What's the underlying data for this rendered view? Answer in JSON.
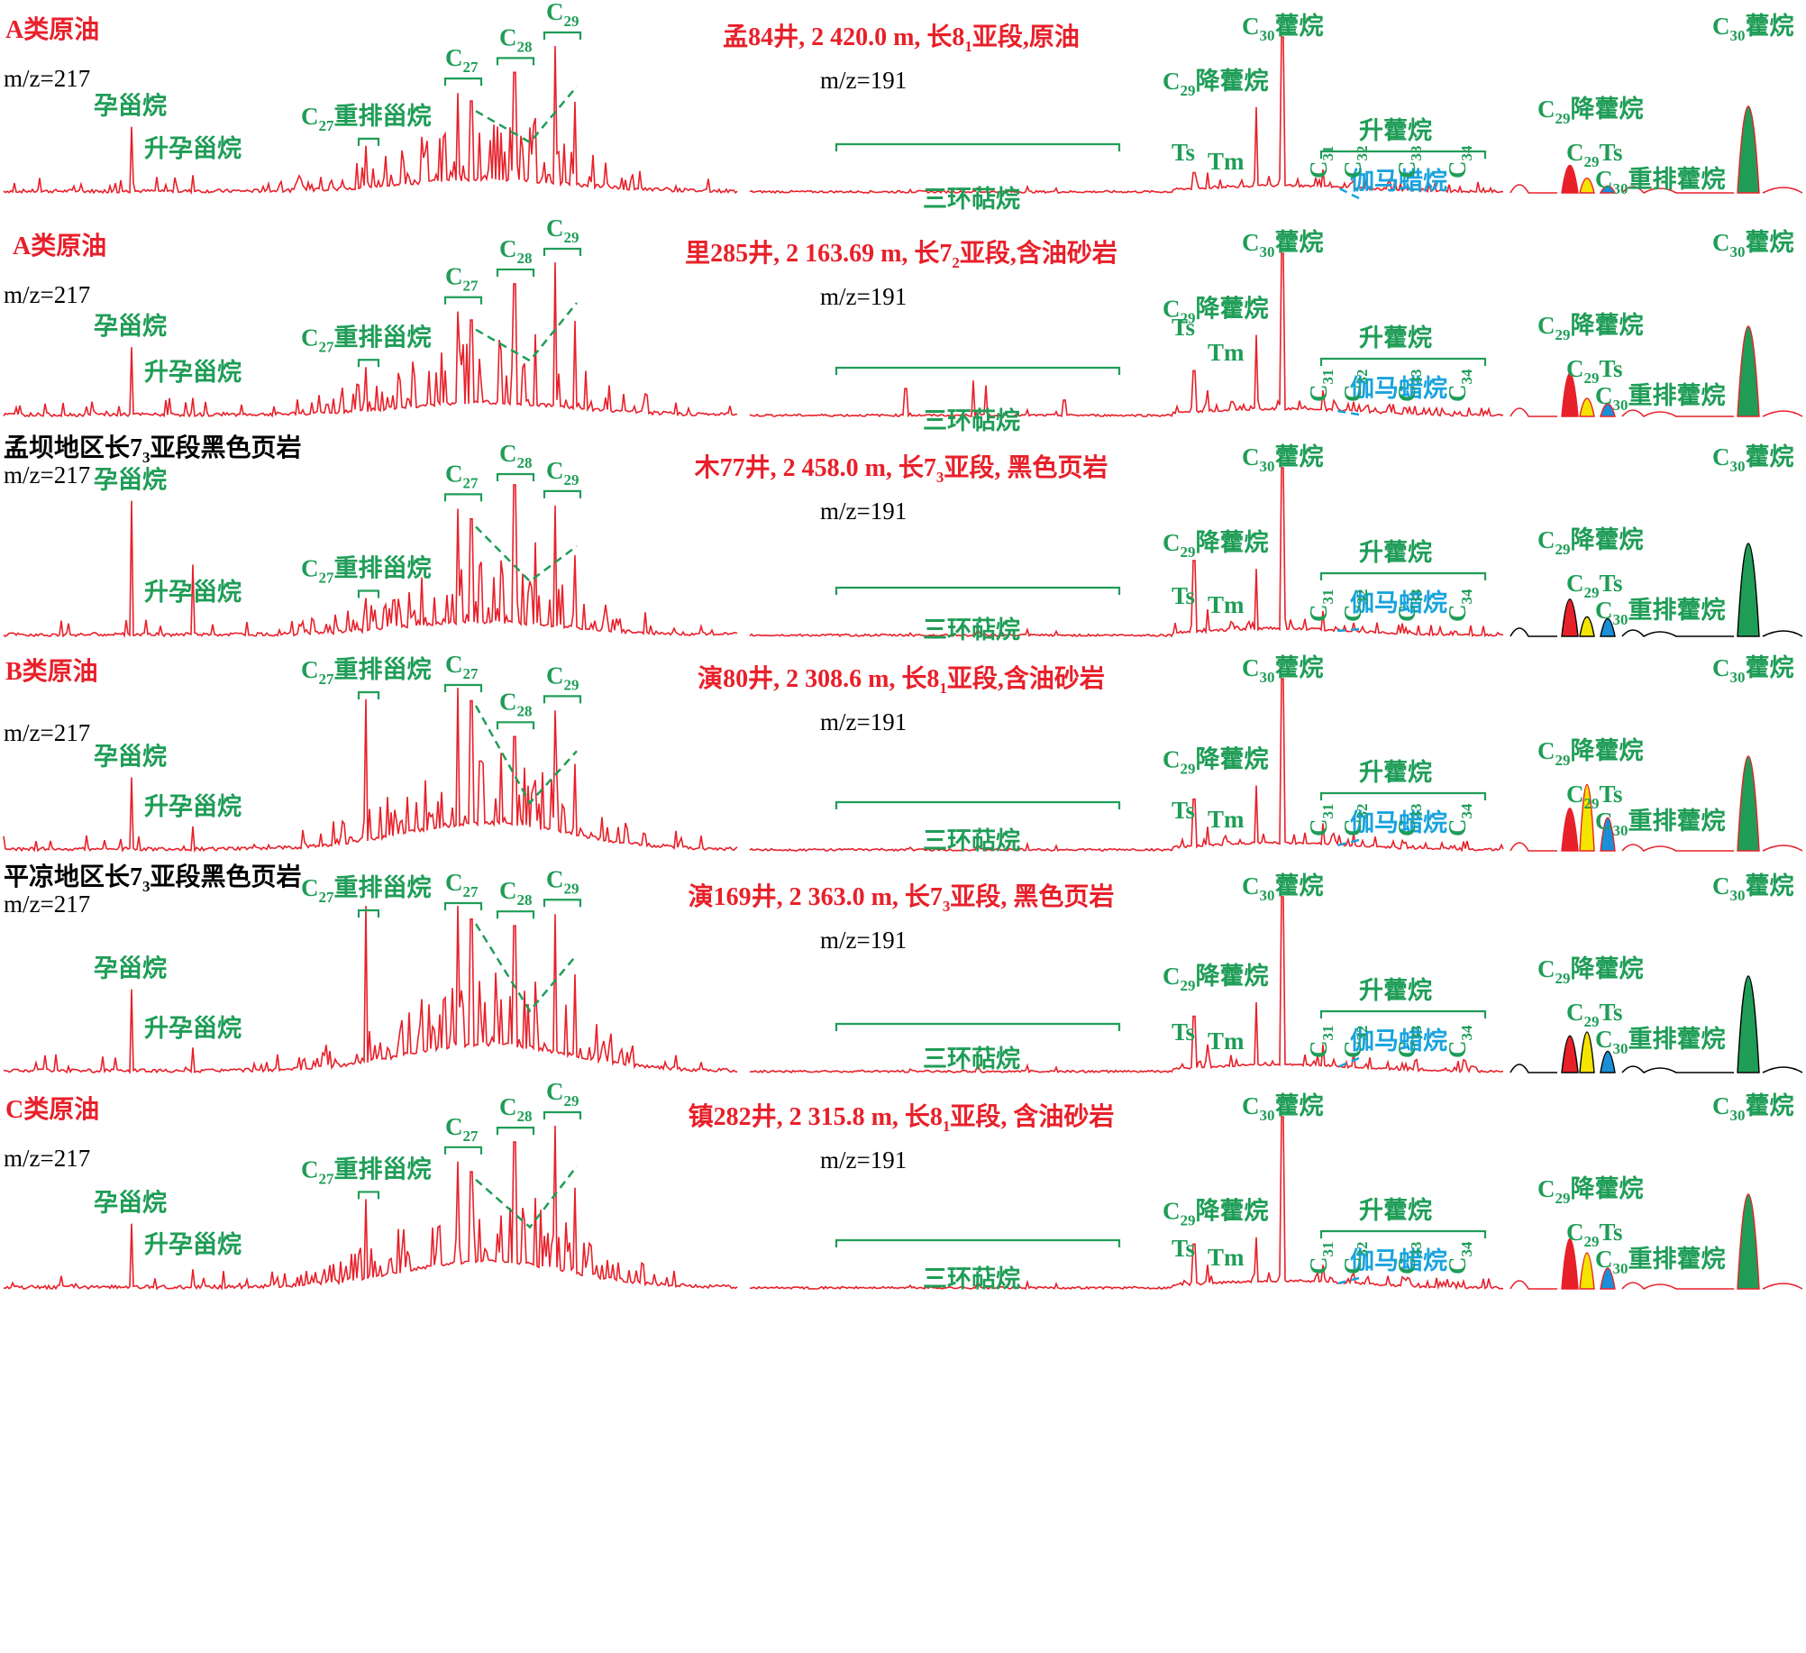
{
  "colors": {
    "trace_red": "#e8202a",
    "compound_label_green": "#1f9d57",
    "gammacerane_blue": "#19a3dd",
    "black": "#000000",
    "fill_red": "#e8202a",
    "fill_yellow": "#f5e400",
    "fill_blue": "#1a8fd8",
    "fill_green": "#1f9d57"
  },
  "figure": {
    "mz_217": "m/z=217",
    "mz_191": "m/z=191",
    "labels": {
      "pregnane": "孕甾烷",
      "homopregnane": "升孕甾烷",
      "diasterane": "重排甾烷",
      "tricyclic": "三环萜烷",
      "norhopane": "降藿烷",
      "homohopane": "升藿烷",
      "gammacerane": "伽马蜡烷",
      "hopane": "藿烷",
      "ts": "Ts",
      "tm": "Tm",
      "diahopane": "重排藿烷",
      "c27": "C27",
      "c28": "C28",
      "c29": "C29",
      "c30": "C30",
      "c31": "C31",
      "c32": "C32",
      "c33": "C33",
      "c34": "C34"
    }
  },
  "chart_data": [
    {
      "type": "line",
      "group": "A类原油",
      "sample": "孟84井, 2 420.0 m, 长81亚段,原油",
      "ions": [
        "m/z=217",
        "m/z=191"
      ],
      "peaks_m217": [
        {
          "label": "孕甾烷",
          "rel": 0.45
        },
        {
          "label": "升孕甾烷",
          "rel": 0.12
        },
        {
          "label": "C27重排甾烷",
          "rel": 0.32
        },
        {
          "label": "C27",
          "rel": 0.68
        },
        {
          "label": "C28",
          "rel": 0.82
        },
        {
          "label": "C29",
          "rel": 1.0
        }
      ],
      "peaks_m191": [
        {
          "label": "Ts",
          "rel": 0.13
        },
        {
          "label": "Tm",
          "rel": 0.13
        },
        {
          "label": "C29降藿烷",
          "rel": 0.55
        },
        {
          "label": "C30藿烷",
          "rel": 1.0
        },
        {
          "label": "C31",
          "rel": 0.15
        },
        {
          "label": "C32",
          "rel": 0.08
        },
        {
          "label": "C33",
          "rel": 0.04
        },
        {
          "label": "C34",
          "rel": 0.02
        }
      ],
      "inset_rel": {
        "C29降藿烷": 0.32,
        "C29Ts": 0.17,
        "C30重排藿烷": 0.08,
        "C30藿烷": 1.0
      }
    },
    {
      "type": "line",
      "group": "A类原油",
      "sample": "里285井, 2 163.69 m, 长72亚段,含油砂岩",
      "ions": [
        "m/z=217",
        "m/z=191"
      ],
      "peaks_m217": [
        {
          "label": "孕甾烷",
          "rel": 0.45
        },
        {
          "label": "升孕甾烷",
          "rel": 0.12
        },
        {
          "label": "C27重排甾烷",
          "rel": 0.32
        },
        {
          "label": "C27",
          "rel": 0.68
        },
        {
          "label": "C28",
          "rel": 0.86
        },
        {
          "label": "C29",
          "rel": 1.0
        }
      ],
      "peaks_m191": [
        {
          "label": "Ts",
          "rel": 0.28
        },
        {
          "label": "Tm",
          "rel": 0.16
        },
        {
          "label": "C29降藿烷",
          "rel": 0.5
        },
        {
          "label": "C30藿烷",
          "rel": 1.0
        },
        {
          "label": "C31",
          "rel": 0.16
        },
        {
          "label": "C32",
          "rel": 0.09
        },
        {
          "label": "C33",
          "rel": 0.05
        },
        {
          "label": "C34",
          "rel": 0.03
        }
      ],
      "inset_rel": {
        "C29降藿烷": 0.48,
        "C29Ts": 0.2,
        "C30重排藿烷": 0.14,
        "C30藿烷": 1.0
      }
    },
    {
      "type": "line",
      "group": "孟坝地区长73亚段黑色页岩",
      "sample": "木77井, 2 458.0 m, 长73亚段, 黑色页岩",
      "ions": [
        "m/z=217",
        "m/z=191"
      ],
      "peaks_m217": [
        {
          "label": "孕甾烷",
          "rel": 0.85
        },
        {
          "label": "升孕甾烷",
          "rel": 0.45
        },
        {
          "label": "C27重排甾烷",
          "rel": 0.24
        },
        {
          "label": "C27",
          "rel": 0.8
        },
        {
          "label": "C28",
          "rel": 0.95
        },
        {
          "label": "C29",
          "rel": 0.82
        }
      ],
      "peaks_m191": [
        {
          "label": "Ts",
          "rel": 0.45
        },
        {
          "label": "Tm",
          "rel": 0.16
        },
        {
          "label": "C29降藿烷",
          "rel": 0.4
        },
        {
          "label": "C30藿烷",
          "rel": 1.0
        },
        {
          "label": "C31",
          "rel": 0.15
        },
        {
          "label": "C32",
          "rel": 0.08
        },
        {
          "label": "C33",
          "rel": 0.05
        },
        {
          "label": "C34",
          "rel": 0.03
        }
      ],
      "inset_rel": {
        "C29降藿烷": 0.4,
        "C29Ts": 0.21,
        "C30重排藿烷": 0.19,
        "C30藿烷": 1.0
      }
    },
    {
      "type": "line",
      "group": "B类原油",
      "sample": "演80井, 2 308.6 m, 长81亚段,含油砂岩",
      "ions": [
        "m/z=217",
        "m/z=191"
      ],
      "peaks_m217": [
        {
          "label": "孕甾烷",
          "rel": 0.45
        },
        {
          "label": "升孕甾烷",
          "rel": 0.15
        },
        {
          "label": "C27重排甾烷",
          "rel": 0.93
        },
        {
          "label": "C27",
          "rel": 1.0
        },
        {
          "label": "C28",
          "rel": 0.7
        },
        {
          "label": "C29",
          "rel": 0.86
        }
      ],
      "peaks_m191": [
        {
          "label": "Ts",
          "rel": 0.3
        },
        {
          "label": "Tm",
          "rel": 0.14
        },
        {
          "label": "C29降藿烷",
          "rel": 0.38
        },
        {
          "label": "C30藿烷",
          "rel": 1.0
        },
        {
          "label": "C31",
          "rel": 0.16
        },
        {
          "label": "C32",
          "rel": 0.1
        },
        {
          "label": "C33",
          "rel": 0.05
        },
        {
          "label": "C34",
          "rel": 0.03
        }
      ],
      "inset_rel": {
        "C29降藿烷": 0.45,
        "C29Ts": 0.7,
        "C30重排藿烷": 0.35,
        "C30藿烷": 1.0
      }
    },
    {
      "type": "line",
      "group": "平凉地区长73亚段黑色页岩",
      "sample": "演169井, 2 363.0 m, 长73亚段, 黑色页岩",
      "ions": [
        "m/z=217",
        "m/z=191"
      ],
      "peaks_m217": [
        {
          "label": "孕甾烷",
          "rel": 0.5
        },
        {
          "label": "升孕甾烷",
          "rel": 0.15
        },
        {
          "label": "C27重排甾烷",
          "rel": 1.0
        },
        {
          "label": "C27",
          "rel": 1.0
        },
        {
          "label": "C28",
          "rel": 0.88
        },
        {
          "label": "C29",
          "rel": 0.95
        }
      ],
      "peaks_m191": [
        {
          "label": "Ts",
          "rel": 0.32
        },
        {
          "label": "Tm",
          "rel": 0.16
        },
        {
          "label": "C29降藿烷",
          "rel": 0.4
        },
        {
          "label": "C30藿烷",
          "rel": 1.0
        },
        {
          "label": "C31",
          "rel": 0.16
        },
        {
          "label": "C32",
          "rel": 0.11
        },
        {
          "label": "C33",
          "rel": 0.05
        },
        {
          "label": "C34",
          "rel": 0.03
        }
      ],
      "inset_rel": {
        "C29降藿烷": 0.38,
        "C29Ts": 0.42,
        "C30重排藿烷": 0.22,
        "C30藿烷": 1.0
      }
    },
    {
      "type": "line",
      "group": "C类原油",
      "sample": "镇282井, 2 315.8 m, 长81亚段, 含油砂岩",
      "ions": [
        "m/z=217",
        "m/z=191"
      ],
      "peaks_m217": [
        {
          "label": "孕甾烷",
          "rel": 0.4
        },
        {
          "label": "升孕甾烷",
          "rel": 0.12
        },
        {
          "label": "C27重排甾烷",
          "rel": 0.55
        },
        {
          "label": "C27",
          "rel": 0.78
        },
        {
          "label": "C28",
          "rel": 0.9
        },
        {
          "label": "C29",
          "rel": 1.0
        }
      ],
      "peaks_m191": [
        {
          "label": "Ts",
          "rel": 0.26
        },
        {
          "label": "Tm",
          "rel": 0.14
        },
        {
          "label": "C29降藿烷",
          "rel": 0.3
        },
        {
          "label": "C30藿烷",
          "rel": 1.0
        },
        {
          "label": "C31",
          "rel": 0.14
        },
        {
          "label": "C32",
          "rel": 0.09
        },
        {
          "label": "C33",
          "rel": 0.05
        },
        {
          "label": "C34",
          "rel": 0.03
        }
      ],
      "inset_rel": {
        "C29降藿烷": 0.53,
        "C29Ts": 0.38,
        "C30重排藿烷": 0.22,
        "C30藿烷": 1.0
      }
    }
  ]
}
